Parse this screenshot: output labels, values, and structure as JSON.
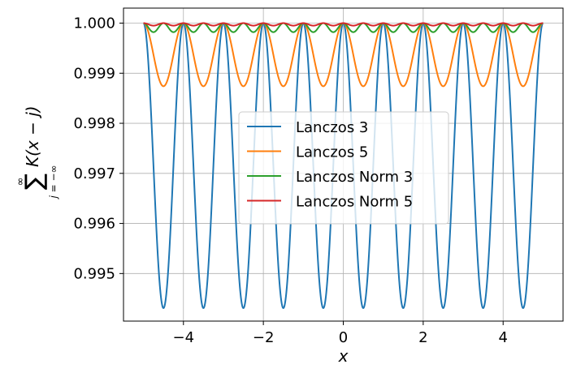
{
  "chart_data": {
    "type": "line",
    "title": "",
    "xlabel": "x",
    "ylabel": {
      "sum_symbol": "∑",
      "upper_limit": "∞",
      "lower_limit": "j = −∞",
      "expression": "K(x − j)"
    },
    "xlim": [
      -5.5,
      5.5
    ],
    "ylim": [
      0.99405,
      1.0003
    ],
    "xticks": [
      -4,
      -2,
      0,
      2,
      4
    ],
    "xtick_labels": [
      "−4",
      "−2",
      "0",
      "2",
      "4"
    ],
    "yticks": [
      0.995,
      0.996,
      0.997,
      0.998,
      0.999,
      1.0
    ],
    "ytick_labels": [
      "0.995",
      "0.996",
      "0.997",
      "0.998",
      "0.999",
      "1.000"
    ],
    "grid": true,
    "legend_position": "center-right",
    "x_range": [
      -5,
      5
    ],
    "series": [
      {
        "name": "Lanczos 3",
        "color": "#1f77b4",
        "max": 1.0,
        "min": 0.99431,
        "period": 1,
        "peak_at_integers": true
      },
      {
        "name": "Lanczos 5",
        "color": "#ff7f0e",
        "max": 1.0,
        "min": 0.99874,
        "period": 1,
        "peak_at_integers": true
      },
      {
        "name": "Lanczos Norm 3",
        "color": "#2ca02c",
        "max": 1.0,
        "min": 0.99982,
        "period": 0.5,
        "peak_at_integers": true
      },
      {
        "name": "Lanczos Norm 5",
        "color": "#d62728",
        "max": 1.0,
        "min": 0.99995,
        "period": 0.5,
        "peak_at_integers": true
      }
    ]
  }
}
